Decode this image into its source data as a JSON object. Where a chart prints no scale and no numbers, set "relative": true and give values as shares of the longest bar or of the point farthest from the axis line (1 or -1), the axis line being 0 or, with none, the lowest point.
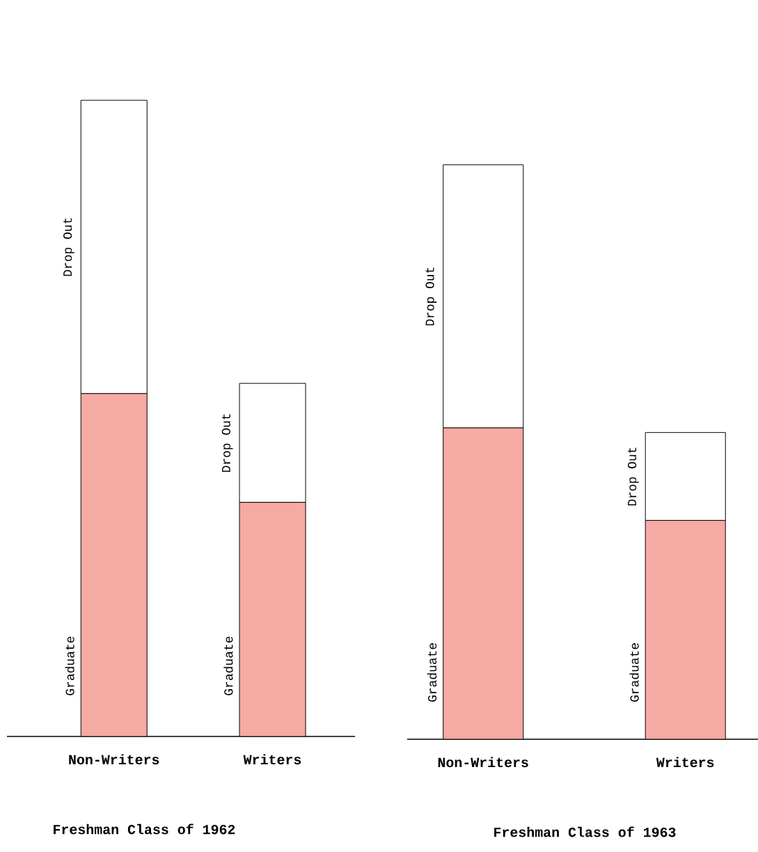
{
  "chart_data": [
    {
      "type": "bar",
      "title": "Freshman Class of 1962",
      "categories": [
        "Non-Writers",
        "Writers"
      ],
      "stacked": true,
      "relative": true,
      "series": [
        {
          "name": "Graduate",
          "color": "#f5aaa3",
          "values": [
            0.539,
            0.368
          ]
        },
        {
          "name": "Drop Out",
          "color": "#ffffff",
          "values": [
            0.461,
            0.187
          ]
        }
      ]
    },
    {
      "type": "bar",
      "title": "Freshman Class of 1963",
      "categories": [
        "Non-Writers",
        "Writers"
      ],
      "stacked": true,
      "relative": true,
      "series": [
        {
          "name": "Graduate",
          "color": "#f5aaa3",
          "values": [
            0.542,
            0.381
          ]
        },
        {
          "name": "Drop Out",
          "color": "#ffffff",
          "values": [
            0.458,
            0.153
          ]
        }
      ]
    }
  ]
}
